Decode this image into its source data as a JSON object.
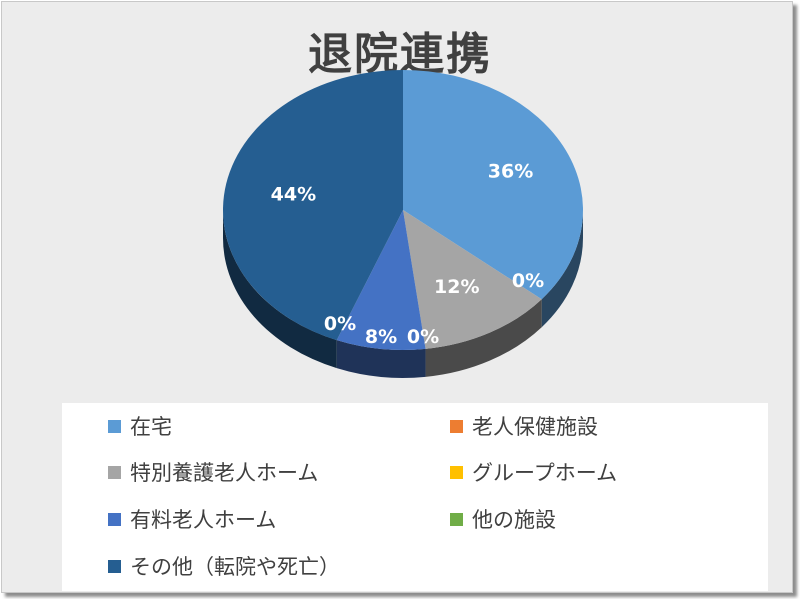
{
  "chart_data": {
    "type": "pie",
    "title": "退院連携",
    "categories": [
      "在宅",
      "老人保健施設",
      "特別養護老人ホーム",
      "グループホーム",
      "有料老人ホーム",
      "他の施設",
      "その他（転院や死亡）"
    ],
    "values": [
      36,
      0,
      12,
      0,
      8,
      0,
      44
    ],
    "data_labels": [
      "36%",
      "0%",
      "12%",
      "0%",
      "8%",
      "0%",
      "44%"
    ],
    "colors": [
      "#5b9bd5",
      "#ed7d31",
      "#a5a5a5",
      "#ffc000",
      "#4472c4",
      "#70ad47",
      "#255e91"
    ],
    "legend_position": "bottom",
    "style": "3d"
  }
}
